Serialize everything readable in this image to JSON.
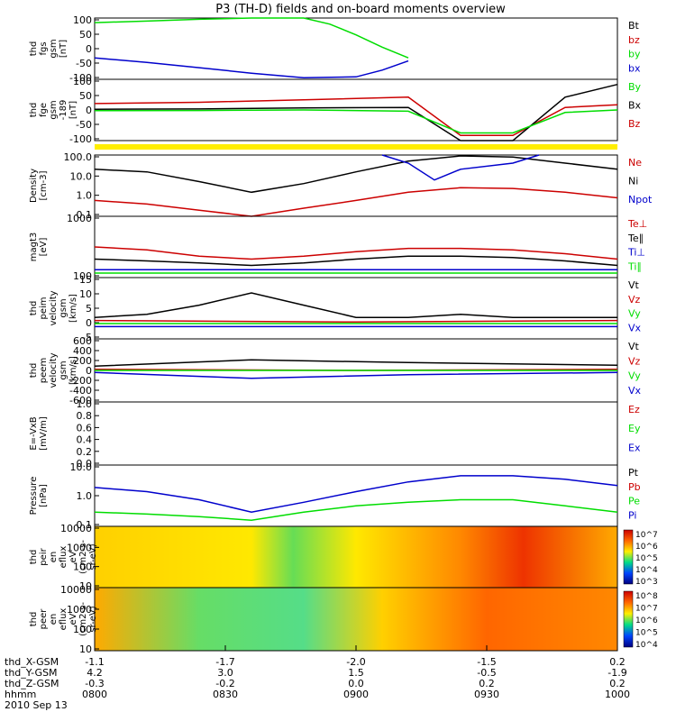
{
  "title": "P3 (TH-D) fields and on-board moments overview",
  "colors": {
    "black": "#000000",
    "red": "#cc0000",
    "green": "#00dd00",
    "blue": "#0000cc",
    "yellow": "#ffee00"
  },
  "time_axis": {
    "tick_labels": [
      "0800",
      "0830",
      "0900",
      "0930",
      "1000"
    ],
    "rows": [
      {
        "label": "thd_X-GSM",
        "values": [
          "-1.1",
          "-1.7",
          "-2.0",
          "-1.5",
          "0.2"
        ]
      },
      {
        "label": "thd_Y-GSM",
        "values": [
          "4.2",
          "3.0",
          "1.5",
          "-0.5",
          "-1.9"
        ]
      },
      {
        "label": "thd_Z-GSM",
        "values": [
          "-0.3",
          "-0.2",
          "0.0",
          "0.2",
          "0.2"
        ]
      },
      {
        "label": "hhmm",
        "values": [
          "0800",
          "0830",
          "0900",
          "0930",
          "1000"
        ]
      }
    ],
    "date": "2010 Sep 13"
  },
  "chart_data": [
    {
      "type": "line",
      "ylabel": [
        "thd",
        "fgs",
        "gsm",
        "[nT]"
      ],
      "yticks": [
        "100",
        "50",
        "0",
        "-50",
        "-100"
      ],
      "ylim": [
        -100,
        100
      ],
      "legend": [
        {
          "name": "Bt",
          "color": "#000000"
        },
        {
          "name": "bz",
          "color": "#cc0000"
        },
        {
          "name": "by",
          "color": "#00dd00"
        },
        {
          "name": "bx",
          "color": "#0000cc"
        }
      ],
      "series": [
        {
          "name": "by",
          "color": "#00dd00",
          "x": [
            0,
            0.1,
            0.2,
            0.3,
            0.35,
            0.4,
            0.45,
            0.5,
            0.55,
            0.6
          ],
          "y": [
            85,
            90,
            96,
            100,
            100,
            100,
            80,
            45,
            5,
            -30
          ]
        },
        {
          "name": "bx",
          "color": "#0000cc",
          "x": [
            0,
            0.1,
            0.2,
            0.3,
            0.4,
            0.5,
            0.55,
            0.6
          ],
          "y": [
            -30,
            -45,
            -62,
            -80,
            -95,
            -92,
            -70,
            -40
          ]
        }
      ]
    },
    {
      "type": "line",
      "ylabel": [
        "thd",
        "fge",
        "gsm",
        "-189",
        "[nT]"
      ],
      "yticks": [
        "100",
        "50",
        "0",
        "-50",
        "-100"
      ],
      "ylim": [
        -120,
        120
      ],
      "legend": [
        {
          "name": "By",
          "color": "#00dd00"
        },
        {
          "name": "Bx",
          "color": "#000000"
        },
        {
          "name": "Bz",
          "color": "#cc0000"
        }
      ],
      "series": [
        {
          "name": "Bz",
          "color": "#cc0000",
          "x": [
            0,
            0.2,
            0.4,
            0.6,
            0.7,
            0.8,
            0.9,
            1.0
          ],
          "y": [
            25,
            30,
            40,
            50,
            -100,
            -100,
            10,
            20
          ]
        },
        {
          "name": "Bx",
          "color": "#000000",
          "x": [
            0,
            0.2,
            0.4,
            0.6,
            0.7,
            0.8,
            0.9,
            1.0
          ],
          "y": [
            3,
            4,
            8,
            10,
            -120,
            -120,
            50,
            100
          ]
        },
        {
          "name": "By",
          "color": "#00dd00",
          "x": [
            0,
            0.2,
            0.4,
            0.6,
            0.7,
            0.8,
            0.9,
            1.0
          ],
          "y": [
            -3,
            -2,
            0,
            -5,
            -90,
            -90,
            -10,
            0
          ]
        }
      ]
    },
    {
      "type": "line",
      "scale": "log",
      "ylabel": [
        "Density",
        "[cm-3]"
      ],
      "yticks": [
        "100.0",
        "10.0",
        "1.0",
        "0.1"
      ],
      "ylim": [
        0.1,
        100
      ],
      "legend": [
        {
          "name": "Ne",
          "color": "#cc0000"
        },
        {
          "name": "Ni",
          "color": "#000000"
        },
        {
          "name": "Npot",
          "color": "#0000cc"
        }
      ],
      "series": [
        {
          "name": "Ni",
          "color": "#000000",
          "x": [
            0,
            0.1,
            0.2,
            0.3,
            0.4,
            0.5,
            0.6,
            0.7,
            0.8,
            0.9,
            1.0
          ],
          "y": [
            20,
            15,
            5,
            1.5,
            4,
            15,
            50,
            90,
            80,
            40,
            20
          ]
        },
        {
          "name": "Ne",
          "color": "#cc0000",
          "x": [
            0,
            0.1,
            0.2,
            0.3,
            0.4,
            0.5,
            0.6,
            0.7,
            0.8,
            0.9,
            1.0
          ],
          "y": [
            0.6,
            0.4,
            0.2,
            0.1,
            0.25,
            0.6,
            1.5,
            2.5,
            2.3,
            1.5,
            0.8
          ]
        },
        {
          "name": "Npot",
          "color": "#0000cc",
          "x": [
            0.55,
            0.6,
            0.65,
            0.7,
            0.8,
            0.85
          ],
          "y": [
            100,
            40,
            6,
            20,
            40,
            100
          ]
        }
      ]
    },
    {
      "type": "line",
      "scale": "log",
      "ylabel": [
        "magt3",
        "[eV]"
      ],
      "yticks": [
        "1000",
        "100"
      ],
      "ylim": [
        100,
        10000
      ],
      "legend": [
        {
          "name": "Te⊥",
          "color": "#cc0000"
        },
        {
          "name": "Te∥",
          "color": "#000000"
        },
        {
          "name": "Ti⊥",
          "color": "#0000cc"
        },
        {
          "name": "Ti∥",
          "color": "#00dd00"
        }
      ],
      "series": [
        {
          "name": "Te⊥",
          "color": "#cc0000",
          "x": [
            0,
            0.1,
            0.2,
            0.3,
            0.4,
            0.5,
            0.6,
            0.7,
            0.8,
            0.9,
            1.0
          ],
          "y": [
            1000,
            800,
            500,
            400,
            500,
            700,
            900,
            900,
            800,
            600,
            400
          ]
        },
        {
          "name": "Te∥",
          "color": "#000000",
          "x": [
            0,
            0.1,
            0.2,
            0.3,
            0.4,
            0.5,
            0.6,
            0.7,
            0.8,
            0.9,
            1.0
          ],
          "y": [
            400,
            350,
            300,
            250,
            300,
            400,
            500,
            500,
            450,
            350,
            250
          ]
        },
        {
          "name": "Ti⊥",
          "color": "#0000cc",
          "x": [
            0,
            0.5,
            1.0
          ],
          "y": [
            180,
            180,
            180
          ]
        },
        {
          "name": "Ti∥",
          "color": "#00dd00",
          "x": [
            0,
            0.5,
            1.0
          ],
          "y": [
            140,
            140,
            140
          ]
        }
      ]
    },
    {
      "type": "line",
      "ylabel": [
        "thd",
        "peim",
        "velocity",
        "gsm",
        "[km/s]"
      ],
      "yticks": [
        "15",
        "10",
        "5",
        "0",
        "-5"
      ],
      "ylim": [
        -5,
        15
      ],
      "legend": [
        {
          "name": "Vt",
          "color": "#000000"
        },
        {
          "name": "Vz",
          "color": "#cc0000"
        },
        {
          "name": "Vy",
          "color": "#00dd00"
        },
        {
          "name": "Vx",
          "color": "#0000cc"
        }
      ],
      "series": [
        {
          "name": "Vt",
          "color": "#000000",
          "x": [
            0,
            0.1,
            0.2,
            0.3,
            0.4,
            0.5,
            0.6,
            0.7,
            0.8,
            0.9,
            1.0
          ],
          "y": [
            2,
            3,
            6,
            10,
            6,
            2,
            2,
            3,
            2,
            2,
            2
          ]
        },
        {
          "name": "Vz",
          "color": "#cc0000",
          "x": [
            0,
            0.5,
            1.0
          ],
          "y": [
            1,
            0.5,
            1
          ]
        },
        {
          "name": "Vy",
          "color": "#00dd00",
          "x": [
            0,
            0.5,
            1.0
          ],
          "y": [
            0,
            0,
            0
          ]
        },
        {
          "name": "Vx",
          "color": "#0000cc",
          "x": [
            0,
            0.5,
            1.0
          ],
          "y": [
            -1,
            -1,
            -1
          ]
        }
      ]
    },
    {
      "type": "line",
      "ylabel": [
        "thd",
        "peem",
        "velocity",
        "gsm",
        "[km/s]"
      ],
      "yticks": [
        "600",
        "400",
        "200",
        "0",
        "-200",
        "-400",
        "-600"
      ],
      "ylim": [
        -600,
        600
      ],
      "legend": [
        {
          "name": "Vt",
          "color": "#000000"
        },
        {
          "name": "Vz",
          "color": "#cc0000"
        },
        {
          "name": "Vy",
          "color": "#00dd00"
        },
        {
          "name": "Vx",
          "color": "#0000cc"
        }
      ],
      "series": [
        {
          "name": "Vt",
          "color": "#000000",
          "x": [
            0,
            0.3,
            0.6,
            1.0
          ],
          "y": [
            80,
            200,
            150,
            100
          ]
        },
        {
          "name": "Vz",
          "color": "#cc0000",
          "x": [
            0,
            0.5,
            1.0
          ],
          "y": [
            20,
            0,
            20
          ]
        },
        {
          "name": "Vy",
          "color": "#00dd00",
          "x": [
            0,
            0.5,
            1.0
          ],
          "y": [
            0,
            0,
            0
          ]
        },
        {
          "name": "Vx",
          "color": "#0000cc",
          "x": [
            0,
            0.3,
            0.6,
            1.0
          ],
          "y": [
            -40,
            -150,
            -80,
            -40
          ]
        }
      ]
    },
    {
      "type": "line",
      "ylabel": [
        "E=-VxB",
        "[mV/m]"
      ],
      "yticks": [
        "1.0",
        "0.8",
        "0.6",
        "0.4",
        "0.2",
        "0.0"
      ],
      "ylim": [
        0,
        1
      ],
      "legend": [
        {
          "name": "Ez",
          "color": "#cc0000"
        },
        {
          "name": "Ey",
          "color": "#00dd00"
        },
        {
          "name": "Ex",
          "color": "#0000cc"
        }
      ],
      "series": []
    },
    {
      "type": "line",
      "scale": "log",
      "ylabel": [
        "Pressure",
        "[nPa]"
      ],
      "yticks": [
        "10.0",
        "1.0",
        "0.1"
      ],
      "ylim": [
        0.01,
        10
      ],
      "legend": [
        {
          "name": "Pt",
          "color": "#000000"
        },
        {
          "name": "Pb",
          "color": "#cc0000"
        },
        {
          "name": "Pe",
          "color": "#00dd00"
        },
        {
          "name": "Pi",
          "color": "#0000cc"
        }
      ],
      "series": [
        {
          "name": "Pi",
          "color": "#0000cc",
          "x": [
            0,
            0.1,
            0.2,
            0.3,
            0.4,
            0.5,
            0.6,
            0.7,
            0.8,
            0.9,
            1.0
          ],
          "y": [
            0.8,
            0.5,
            0.2,
            0.05,
            0.15,
            0.5,
            1.5,
            3,
            3,
            2,
            1
          ]
        },
        {
          "name": "Pe",
          "color": "#00dd00",
          "x": [
            0,
            0.1,
            0.2,
            0.3,
            0.4,
            0.5,
            0.6,
            0.7,
            0.8,
            0.9,
            1.0
          ],
          "y": [
            0.05,
            0.04,
            0.03,
            0.02,
            0.05,
            0.1,
            0.15,
            0.2,
            0.2,
            0.1,
            0.05
          ]
        }
      ]
    },
    {
      "type": "heatmap",
      "ylabel": [
        "thd",
        "peir",
        "en",
        "eflux",
        "eV",
        "(cm2-s-",
        "sr-eV)"
      ],
      "yticks": [
        "10000",
        "1000",
        "100",
        "10"
      ],
      "colorbar_ticks": [
        "10^7",
        "10^6",
        "10^5",
        "10^4",
        "10^3"
      ]
    },
    {
      "type": "heatmap",
      "ylabel": [
        "thd",
        "peer",
        "en",
        "eflux",
        "eV",
        "(cm2-s-",
        "sr-eV)"
      ],
      "yticks": [
        "10000",
        "1000",
        "100",
        "10"
      ],
      "colorbar_ticks": [
        "10^8",
        "10^7",
        "10^6",
        "10^5",
        "10^4"
      ]
    }
  ]
}
